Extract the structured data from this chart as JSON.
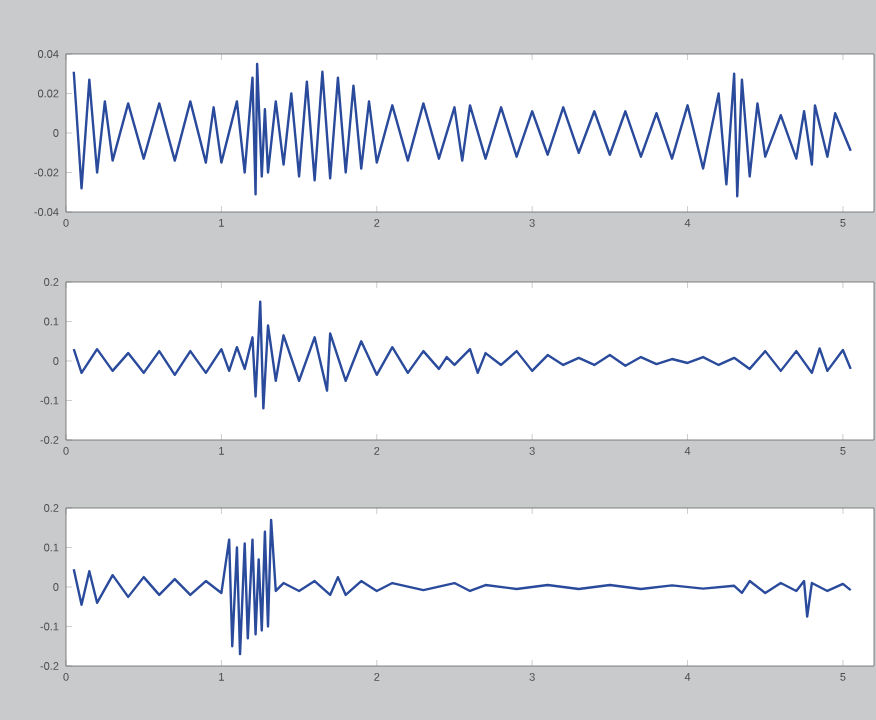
{
  "chart_data": [
    {
      "type": "line",
      "xlim": [
        0,
        5.2
      ],
      "ylim": [
        -0.04,
        0.04
      ],
      "xticks": [
        0,
        1,
        2,
        3,
        4,
        5
      ],
      "yticks": [
        -0.04,
        -0.02,
        0,
        0.02,
        0.04
      ],
      "series": [
        {
          "color": "#2a4a9c",
          "x": [
            0.05,
            0.1,
            0.15,
            0.2,
            0.25,
            0.3,
            0.4,
            0.5,
            0.6,
            0.7,
            0.8,
            0.9,
            0.95,
            1.0,
            1.1,
            1.15,
            1.2,
            1.22,
            1.23,
            1.26,
            1.28,
            1.3,
            1.35,
            1.4,
            1.45,
            1.5,
            1.55,
            1.6,
            1.65,
            1.7,
            1.75,
            1.8,
            1.85,
            1.9,
            1.95,
            2.0,
            2.1,
            2.2,
            2.3,
            2.4,
            2.5,
            2.55,
            2.6,
            2.7,
            2.8,
            2.9,
            3.0,
            3.1,
            3.2,
            3.3,
            3.4,
            3.5,
            3.6,
            3.7,
            3.8,
            3.9,
            4.0,
            4.1,
            4.2,
            4.25,
            4.3,
            4.32,
            4.35,
            4.4,
            4.45,
            4.5,
            4.6,
            4.7,
            4.75,
            4.8,
            4.82,
            4.9,
            4.95,
            5.05
          ],
          "values": [
            0.031,
            -0.028,
            0.027,
            -0.02,
            0.016,
            -0.014,
            0.015,
            -0.013,
            0.015,
            -0.014,
            0.016,
            -0.015,
            0.013,
            -0.015,
            0.016,
            -0.02,
            0.028,
            -0.031,
            0.035,
            -0.022,
            0.012,
            -0.02,
            0.016,
            -0.016,
            0.02,
            -0.022,
            0.026,
            -0.024,
            0.031,
            -0.023,
            0.028,
            -0.02,
            0.024,
            -0.018,
            0.016,
            -0.015,
            0.014,
            -0.014,
            0.015,
            -0.013,
            0.013,
            -0.014,
            0.014,
            -0.013,
            0.013,
            -0.012,
            0.011,
            -0.011,
            0.013,
            -0.01,
            0.011,
            -0.011,
            0.011,
            -0.012,
            0.01,
            -0.013,
            0.014,
            -0.018,
            0.02,
            -0.026,
            0.03,
            -0.032,
            0.027,
            -0.022,
            0.015,
            -0.012,
            0.009,
            -0.013,
            0.011,
            -0.016,
            0.014,
            -0.012,
            0.01,
            -0.009
          ]
        }
      ]
    },
    {
      "type": "line",
      "xlim": [
        0,
        5.2
      ],
      "ylim": [
        -0.2,
        0.2
      ],
      "xticks": [
        0,
        1,
        2,
        3,
        4,
        5
      ],
      "yticks": [
        -0.2,
        -0.1,
        0,
        0.1,
        0.2
      ],
      "series": [
        {
          "color": "#2a4a9c",
          "x": [
            0.05,
            0.1,
            0.2,
            0.3,
            0.4,
            0.5,
            0.6,
            0.7,
            0.8,
            0.9,
            1.0,
            1.05,
            1.1,
            1.15,
            1.2,
            1.22,
            1.25,
            1.27,
            1.3,
            1.35,
            1.4,
            1.5,
            1.6,
            1.68,
            1.7,
            1.8,
            1.9,
            2.0,
            2.1,
            2.2,
            2.3,
            2.4,
            2.45,
            2.5,
            2.6,
            2.65,
            2.7,
            2.8,
            2.9,
            3.0,
            3.1,
            3.2,
            3.3,
            3.4,
            3.5,
            3.6,
            3.7,
            3.8,
            3.9,
            4.0,
            4.1,
            4.2,
            4.3,
            4.4,
            4.5,
            4.6,
            4.7,
            4.8,
            4.85,
            4.9,
            5.0,
            5.05
          ],
          "values": [
            0.03,
            -0.03,
            0.03,
            -0.025,
            0.02,
            -0.03,
            0.025,
            -0.035,
            0.025,
            -0.03,
            0.03,
            -0.025,
            0.035,
            -0.02,
            0.06,
            -0.09,
            0.15,
            -0.12,
            0.09,
            -0.05,
            0.065,
            -0.05,
            0.06,
            -0.075,
            0.07,
            -0.05,
            0.05,
            -0.035,
            0.035,
            -0.03,
            0.025,
            -0.02,
            0.01,
            -0.01,
            0.03,
            -0.03,
            0.02,
            -0.01,
            0.025,
            -0.025,
            0.015,
            -0.01,
            0.008,
            -0.01,
            0.015,
            -0.012,
            0.01,
            -0.008,
            0.005,
            -0.005,
            0.01,
            -0.01,
            0.008,
            -0.02,
            0.025,
            -0.025,
            0.025,
            -0.03,
            0.032,
            -0.025,
            0.028,
            -0.02
          ]
        }
      ]
    },
    {
      "type": "line",
      "xlim": [
        0,
        5.2
      ],
      "ylim": [
        -0.2,
        0.2
      ],
      "xticks": [
        0,
        1,
        2,
        3,
        4,
        5
      ],
      "yticks": [
        -0.2,
        -0.1,
        0,
        0.1,
        0.2
      ],
      "series": [
        {
          "color": "#2a4a9c",
          "x": [
            0.05,
            0.1,
            0.15,
            0.2,
            0.3,
            0.4,
            0.5,
            0.6,
            0.7,
            0.8,
            0.9,
            1.0,
            1.05,
            1.07,
            1.1,
            1.12,
            1.15,
            1.17,
            1.2,
            1.22,
            1.24,
            1.26,
            1.28,
            1.3,
            1.32,
            1.35,
            1.4,
            1.5,
            1.6,
            1.7,
            1.75,
            1.8,
            1.9,
            2.0,
            2.1,
            2.3,
            2.5,
            2.6,
            2.7,
            2.9,
            3.1,
            3.3,
            3.5,
            3.7,
            3.9,
            4.1,
            4.3,
            4.35,
            4.4,
            4.5,
            4.6,
            4.7,
            4.75,
            4.77,
            4.8,
            4.9,
            5.0,
            5.05
          ],
          "values": [
            0.045,
            -0.045,
            0.04,
            -0.04,
            0.03,
            -0.025,
            0.025,
            -0.02,
            0.02,
            -0.02,
            0.015,
            -0.015,
            0.12,
            -0.15,
            0.1,
            -0.17,
            0.11,
            -0.13,
            0.12,
            -0.12,
            0.07,
            -0.11,
            0.14,
            -0.1,
            0.17,
            -0.01,
            0.01,
            -0.01,
            0.015,
            -0.02,
            0.025,
            -0.02,
            0.015,
            -0.01,
            0.01,
            -0.008,
            0.01,
            -0.01,
            0.005,
            -0.005,
            0.005,
            -0.005,
            0.005,
            -0.005,
            0.004,
            -0.004,
            0.003,
            -0.015,
            0.015,
            -0.015,
            0.01,
            -0.01,
            0.015,
            -0.075,
            0.01,
            -0.01,
            0.008,
            -0.008
          ]
        }
      ]
    }
  ]
}
